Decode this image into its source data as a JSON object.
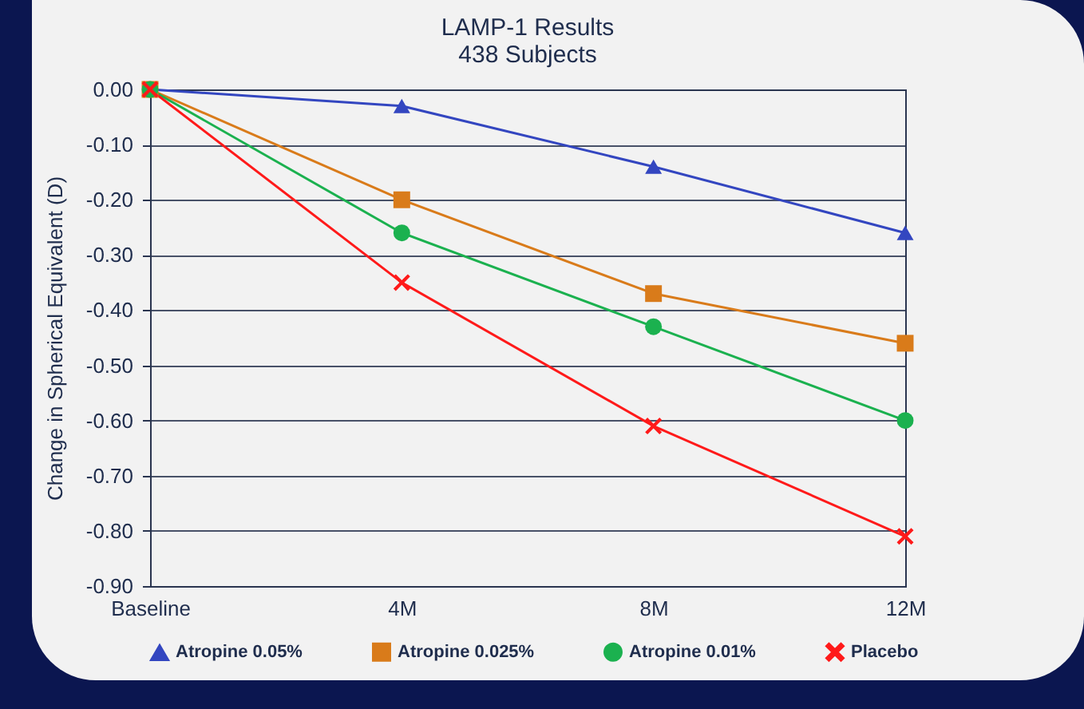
{
  "chart_data": {
    "type": "line",
    "title": "LAMP-1 Results",
    "subtitle": "438 Subjects",
    "ylabel": "Change in Spherical Equivalent (D)",
    "categories": [
      "Baseline",
      "4M",
      "8M",
      "12M"
    ],
    "series": [
      {
        "name": "Atropine 0.05%",
        "color": "#3346c0",
        "marker": "triangle",
        "values": [
          0,
          -0.03,
          -0.14,
          -0.26
        ]
      },
      {
        "name": "Atropine 0.025%",
        "color": "#d97b1a",
        "marker": "square",
        "values": [
          0,
          -0.2,
          -0.37,
          -0.46
        ]
      },
      {
        "name": "Atropine 0.01%",
        "color": "#1bb14f",
        "marker": "circle",
        "values": [
          0,
          -0.26,
          -0.43,
          -0.6
        ]
      },
      {
        "name": "Placebo",
        "color": "#ff1a1a",
        "marker": "cross",
        "values": [
          0,
          -0.35,
          -0.61,
          -0.81
        ]
      }
    ],
    "ylim": [
      -0.9,
      0
    ],
    "yticks": [
      {
        "value": 0,
        "label": "0.00"
      },
      {
        "value": -0.1,
        "label": "-0.10"
      },
      {
        "value": -0.2,
        "label": "-0.20"
      },
      {
        "value": -0.3,
        "label": "-0.30"
      },
      {
        "value": -0.4,
        "label": "-0.40"
      },
      {
        "value": -0.5,
        "label": "-0.50"
      },
      {
        "value": -0.6,
        "label": "-0.60"
      },
      {
        "value": -0.7,
        "label": "-0.70"
      },
      {
        "value": -0.8,
        "label": "-0.80"
      },
      {
        "value": -0.9,
        "label": "-0.90"
      }
    ],
    "grid": "y",
    "legend": "bottom",
    "line_style": "solid"
  }
}
